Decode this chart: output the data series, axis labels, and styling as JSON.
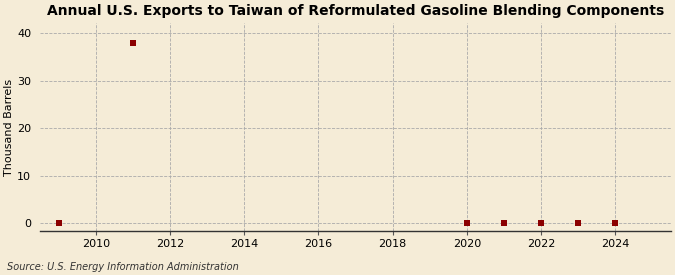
{
  "title": "Annual U.S. Exports to Taiwan of Reformulated Gasoline Blending Components",
  "ylabel": "Thousand Barrels",
  "source": "Source: U.S. Energy Information Administration",
  "background_color": "#f5ecd7",
  "plot_background_color": "#f5ecd7",
  "xlim": [
    2008.5,
    2025.5
  ],
  "ylim": [
    -1.5,
    42
  ],
  "yticks": [
    0,
    10,
    20,
    30,
    40
  ],
  "xticks": [
    2010,
    2012,
    2014,
    2016,
    2018,
    2020,
    2022,
    2024
  ],
  "data_points": [
    {
      "year": 2009,
      "value": 0
    },
    {
      "year": 2011,
      "value": 38
    },
    {
      "year": 2020,
      "value": 0
    },
    {
      "year": 2021,
      "value": 0
    },
    {
      "year": 2022,
      "value": 0
    },
    {
      "year": 2023,
      "value": 0
    },
    {
      "year": 2024,
      "value": 0
    }
  ],
  "marker_color": "#8b0000",
  "marker_size": 18,
  "grid_color": "#aaaaaa",
  "grid_style": "--",
  "grid_linewidth": 0.6,
  "title_fontsize": 10,
  "label_fontsize": 8,
  "tick_fontsize": 8,
  "source_fontsize": 7
}
